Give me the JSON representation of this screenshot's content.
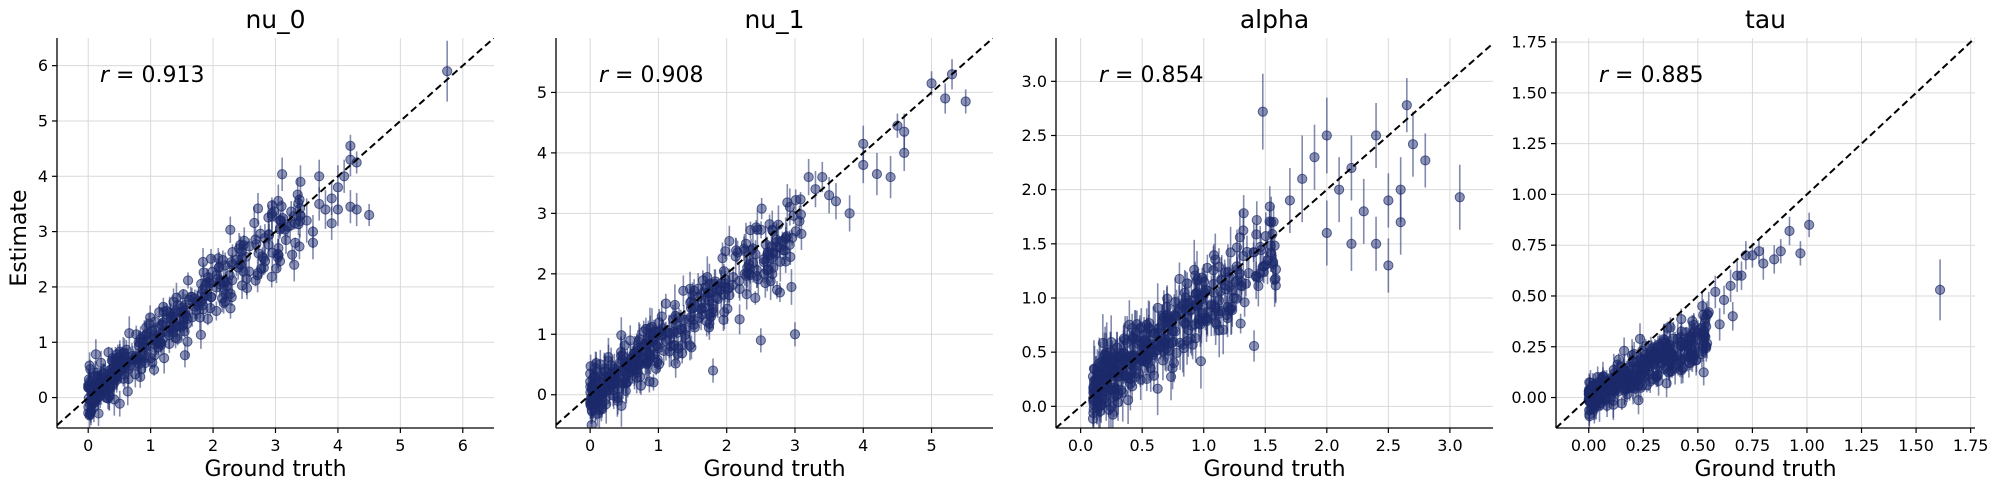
{
  "figure": {
    "ylabel": "Estimate",
    "xlabel": "Ground truth"
  },
  "chart_data": [
    {
      "type": "scatter",
      "title": "nu_0",
      "xlabel": "Ground truth",
      "ylabel": "Estimate",
      "r_label": "r",
      "r_value": "= 0.913",
      "xlim": [
        -0.5,
        6.5
      ],
      "ylim": [
        -0.55,
        6.5
      ],
      "xticks": [
        0,
        1,
        2,
        3,
        4,
        5,
        6
      ],
      "yticks": [
        0,
        1,
        2,
        3,
        4,
        5,
        6
      ],
      "grid": true,
      "identity_line": true,
      "color": "#1b2a6b",
      "cloud": {
        "xmax": 3.4,
        "slope": 0.97,
        "spread": 0.28,
        "err": 0.22,
        "n": 380
      },
      "points": [
        {
          "x": 3.5,
          "y": 3.2,
          "err": 0.4
        },
        {
          "x": 3.6,
          "y": 3.0,
          "err": 0.3
        },
        {
          "x": 3.7,
          "y": 3.5,
          "err": 0.3
        },
        {
          "x": 3.8,
          "y": 3.4,
          "err": 0.35
        },
        {
          "x": 3.9,
          "y": 3.6,
          "err": 0.3
        },
        {
          "x": 4.0,
          "y": 3.8,
          "err": 0.4
        },
        {
          "x": 4.1,
          "y": 4.0,
          "err": 0.3
        },
        {
          "x": 4.2,
          "y": 4.3,
          "err": 0.3
        },
        {
          "x": 4.2,
          "y": 4.55,
          "err": 0.2
        },
        {
          "x": 4.3,
          "y": 4.25,
          "err": 0.2
        },
        {
          "x": 3.9,
          "y": 3.15,
          "err": 0.3
        },
        {
          "x": 4.0,
          "y": 3.4,
          "err": 0.3
        },
        {
          "x": 4.2,
          "y": 3.45,
          "err": 0.3
        },
        {
          "x": 4.3,
          "y": 3.4,
          "err": 0.3
        },
        {
          "x": 4.5,
          "y": 3.3,
          "err": 0.2
        },
        {
          "x": 3.6,
          "y": 2.8,
          "err": 0.3
        },
        {
          "x": 3.4,
          "y": 3.9,
          "err": 0.3
        },
        {
          "x": 3.7,
          "y": 4.0,
          "err": 0.3
        },
        {
          "x": 3.3,
          "y": 2.4,
          "err": 0.3
        },
        {
          "x": 5.75,
          "y": 5.9,
          "err": 0.55
        }
      ]
    },
    {
      "type": "scatter",
      "title": "nu_1",
      "xlabel": "Ground truth",
      "ylabel": "",
      "r_label": "r",
      "r_value": "= 0.908",
      "xlim": [
        -0.5,
        5.9
      ],
      "ylim": [
        -0.55,
        5.9
      ],
      "xticks": [
        0,
        1,
        2,
        3,
        4,
        5
      ],
      "yticks": [
        0,
        1,
        2,
        3,
        4,
        5
      ],
      "grid": true,
      "identity_line": true,
      "color": "#1b2a6b",
      "cloud": {
        "xmax": 3.1,
        "slope": 0.9,
        "spread": 0.3,
        "err": 0.25,
        "n": 380
      },
      "points": [
        {
          "x": 3.2,
          "y": 3.6,
          "err": 0.3
        },
        {
          "x": 3.3,
          "y": 3.4,
          "err": 0.3
        },
        {
          "x": 3.5,
          "y": 3.3,
          "err": 0.3
        },
        {
          "x": 3.6,
          "y": 3.2,
          "err": 0.3
        },
        {
          "x": 3.8,
          "y": 3.0,
          "err": 0.3
        },
        {
          "x": 3.4,
          "y": 3.6,
          "err": 0.25
        },
        {
          "x": 4.0,
          "y": 3.8,
          "err": 0.3
        },
        {
          "x": 4.0,
          "y": 4.15,
          "err": 0.3
        },
        {
          "x": 4.2,
          "y": 3.65,
          "err": 0.35
        },
        {
          "x": 4.4,
          "y": 3.6,
          "err": 0.35
        },
        {
          "x": 4.5,
          "y": 4.45,
          "err": 0.2
        },
        {
          "x": 4.6,
          "y": 4.35,
          "err": 0.3
        },
        {
          "x": 4.6,
          "y": 4.0,
          "err": 0.3
        },
        {
          "x": 5.0,
          "y": 5.15,
          "err": 0.2
        },
        {
          "x": 5.2,
          "y": 4.9,
          "err": 0.25
        },
        {
          "x": 5.3,
          "y": 5.3,
          "err": 0.25
        },
        {
          "x": 5.5,
          "y": 4.85,
          "err": 0.2
        },
        {
          "x": 2.5,
          "y": 0.9,
          "err": 0.2
        },
        {
          "x": 1.8,
          "y": 0.4,
          "err": 0.2
        },
        {
          "x": 3.0,
          "y": 1.0,
          "err": 0.2
        }
      ]
    },
    {
      "type": "scatter",
      "title": "alpha",
      "xlabel": "Ground truth",
      "ylabel": "",
      "r_label": "r",
      "r_value": "= 0.854",
      "xlim": [
        -0.2,
        3.35
      ],
      "ylim": [
        -0.2,
        3.4
      ],
      "xticks": [
        0.0,
        0.5,
        1.0,
        1.5,
        2.0,
        2.5,
        3.0
      ],
      "yticks": [
        0.0,
        0.5,
        1.0,
        1.5,
        2.0,
        2.5,
        3.0
      ],
      "grid": true,
      "identity_line": true,
      "color": "#1b2a6b",
      "cloud": {
        "xmin": 0.1,
        "xmax": 1.6,
        "slope": 0.85,
        "intercept": 0.08,
        "spread": 0.2,
        "err": 0.2,
        "n": 380
      },
      "points": [
        {
          "x": 1.48,
          "y": 2.72,
          "err": 0.35
        },
        {
          "x": 1.7,
          "y": 1.9,
          "err": 0.3
        },
        {
          "x": 1.8,
          "y": 2.1,
          "err": 0.4
        },
        {
          "x": 1.9,
          "y": 2.3,
          "err": 0.3
        },
        {
          "x": 2.0,
          "y": 1.6,
          "err": 0.3
        },
        {
          "x": 2.0,
          "y": 2.5,
          "err": 0.35
        },
        {
          "x": 2.1,
          "y": 2.0,
          "err": 0.3
        },
        {
          "x": 2.2,
          "y": 1.5,
          "err": 0.25
        },
        {
          "x": 2.2,
          "y": 2.2,
          "err": 0.3
        },
        {
          "x": 2.3,
          "y": 1.8,
          "err": 0.3
        },
        {
          "x": 2.4,
          "y": 2.5,
          "err": 0.3
        },
        {
          "x": 2.4,
          "y": 1.5,
          "err": 0.25
        },
        {
          "x": 2.5,
          "y": 1.9,
          "err": 0.25
        },
        {
          "x": 2.5,
          "y": 1.3,
          "err": 0.25
        },
        {
          "x": 2.6,
          "y": 2.0,
          "err": 0.3
        },
        {
          "x": 2.6,
          "y": 1.7,
          "err": 0.3
        },
        {
          "x": 2.65,
          "y": 2.78,
          "err": 0.25
        },
        {
          "x": 2.7,
          "y": 2.42,
          "err": 0.3
        },
        {
          "x": 2.8,
          "y": 2.27,
          "err": 0.25
        },
        {
          "x": 3.08,
          "y": 1.93,
          "err": 0.3
        }
      ]
    },
    {
      "type": "scatter",
      "title": "tau",
      "xlabel": "Ground truth",
      "ylabel": "",
      "r_label": "r",
      "r_value": "= 0.885",
      "xlim": [
        -0.15,
        1.77
      ],
      "ylim": [
        -0.15,
        1.77
      ],
      "xticks": [
        0.0,
        0.25,
        0.5,
        0.75,
        1.0,
        1.25,
        1.5,
        1.75
      ],
      "xtick_labels": [
        "0.00",
        "0.25",
        "0.50",
        "0.75",
        "1.00",
        "1.25",
        "1.50",
        "1.75"
      ],
      "yticks": [
        0.0,
        0.25,
        0.5,
        0.75,
        1.0,
        1.25,
        1.5,
        1.75
      ],
      "ytick_labels": [
        "0.00",
        "0.25",
        "0.50",
        "0.75",
        "1.00",
        "1.25",
        "1.50",
        "1.75"
      ],
      "grid": true,
      "identity_line": true,
      "color": "#1b2a6b",
      "cloud": {
        "xmin": 0.0,
        "xmax": 0.55,
        "slope": 0.55,
        "spread": 0.05,
        "err": 0.06,
        "n": 380
      },
      "points": [
        {
          "x": 0.55,
          "y": 0.42,
          "err": 0.1
        },
        {
          "x": 0.58,
          "y": 0.52,
          "err": 0.08
        },
        {
          "x": 0.6,
          "y": 0.36,
          "err": 0.08
        },
        {
          "x": 0.62,
          "y": 0.48,
          "err": 0.07
        },
        {
          "x": 0.65,
          "y": 0.55,
          "err": 0.08
        },
        {
          "x": 0.66,
          "y": 0.4,
          "err": 0.07
        },
        {
          "x": 0.68,
          "y": 0.6,
          "err": 0.08
        },
        {
          "x": 0.7,
          "y": 0.6,
          "err": 0.07
        },
        {
          "x": 0.72,
          "y": 0.7,
          "err": 0.07
        },
        {
          "x": 0.75,
          "y": 0.7,
          "err": 0.06
        },
        {
          "x": 0.78,
          "y": 0.72,
          "err": 0.06
        },
        {
          "x": 0.8,
          "y": 0.66,
          "err": 0.08
        },
        {
          "x": 0.85,
          "y": 0.68,
          "err": 0.07
        },
        {
          "x": 0.88,
          "y": 0.72,
          "err": 0.06
        },
        {
          "x": 0.92,
          "y": 0.82,
          "err": 0.07
        },
        {
          "x": 0.97,
          "y": 0.71,
          "err": 0.06
        },
        {
          "x": 1.01,
          "y": 0.85,
          "err": 0.06
        },
        {
          "x": 1.61,
          "y": 0.53,
          "err": 0.15
        },
        {
          "x": 0.5,
          "y": 0.32,
          "err": 0.06
        },
        {
          "x": 0.52,
          "y": 0.45,
          "err": 0.07
        }
      ]
    }
  ]
}
